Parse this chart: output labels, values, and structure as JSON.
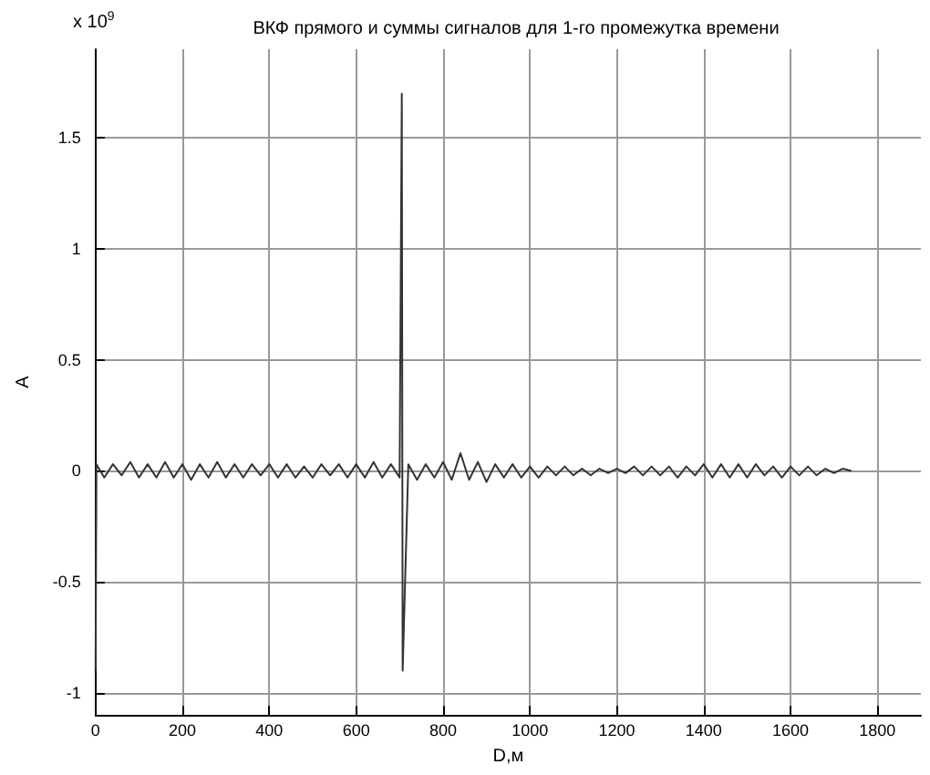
{
  "chart_data": {
    "type": "line",
    "title": "ВКФ прямого и суммы сигналов для 1-го промежутка времени",
    "xlabel": "D,м",
    "ylabel": "A",
    "annotations": [
      "x 10$^{9}$"
    ],
    "x": [
      0,
      2,
      20,
      40,
      60,
      80,
      100,
      120,
      140,
      160,
      180,
      200,
      220,
      240,
      260,
      280,
      300,
      320,
      340,
      360,
      380,
      400,
      420,
      440,
      460,
      480,
      500,
      520,
      540,
      560,
      580,
      600,
      620,
      640,
      660,
      680,
      700,
      705,
      707,
      720,
      740,
      760,
      780,
      800,
      820,
      840,
      860,
      880,
      900,
      920,
      940,
      960,
      980,
      1000,
      1020,
      1040,
      1060,
      1080,
      1100,
      1120,
      1140,
      1160,
      1180,
      1200,
      1220,
      1240,
      1260,
      1280,
      1300,
      1320,
      1340,
      1360,
      1380,
      1400,
      1420,
      1440,
      1460,
      1480,
      1500,
      1520,
      1540,
      1560,
      1580,
      1600,
      1620,
      1640,
      1660,
      1680,
      1700,
      1720,
      1740
    ],
    "series": [
      {
        "color": "#333333",
        "values": [
          -0.9,
          0.03,
          -0.03,
          0.03,
          -0.02,
          0.04,
          -0.03,
          0.03,
          -0.03,
          0.04,
          -0.03,
          0.03,
          -0.04,
          0.03,
          -0.03,
          0.04,
          -0.03,
          0.03,
          -0.03,
          0.03,
          -0.02,
          0.03,
          -0.03,
          0.03,
          -0.03,
          0.02,
          -0.03,
          0.03,
          -0.02,
          0.03,
          -0.03,
          0.03,
          -0.03,
          0.04,
          -0.03,
          0.03,
          -0.03,
          1.7,
          -0.9,
          0.03,
          -0.04,
          0.03,
          -0.03,
          0.04,
          -0.04,
          0.08,
          -0.04,
          0.04,
          -0.05,
          0.03,
          -0.03,
          0.03,
          -0.03,
          0.02,
          -0.03,
          0.02,
          -0.02,
          0.02,
          -0.02,
          0.01,
          -0.02,
          0.01,
          -0.01,
          0.01,
          -0.01,
          0.02,
          -0.02,
          0.02,
          -0.02,
          0.02,
          -0.03,
          0.02,
          -0.02,
          0.03,
          -0.03,
          0.03,
          -0.03,
          0.03,
          -0.03,
          0.03,
          -0.02,
          0.02,
          -0.03,
          0.02,
          -0.02,
          0.02,
          -0.02,
          0.01,
          -0.01,
          0.01,
          0
        ]
      }
    ],
    "xlim": [
      0,
      1900
    ],
    "xticks": [
      0,
      200,
      400,
      600,
      800,
      1000,
      1200,
      1400,
      1600,
      1800
    ],
    "ylim": [
      -1.1,
      1.9
    ],
    "yticks": [
      -1,
      -0.5,
      0,
      0.5,
      1,
      1.5
    ],
    "grid": true,
    "marker": "none",
    "line_style": "solid"
  }
}
